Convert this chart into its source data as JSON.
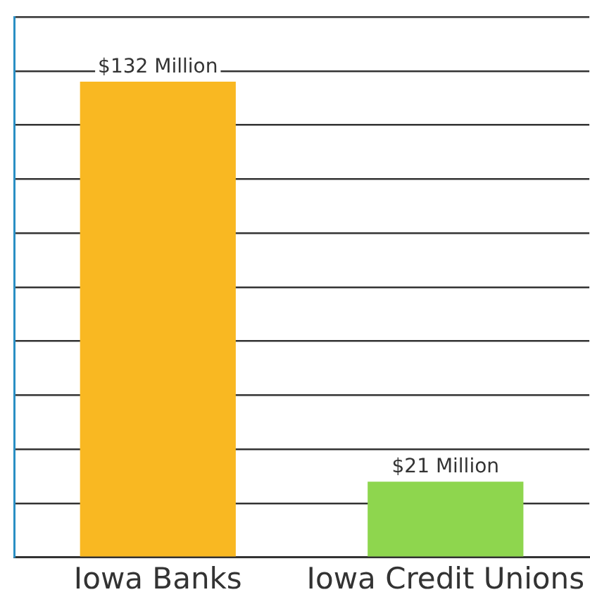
{
  "chart_data": {
    "type": "bar",
    "categories": [
      "Iowa Banks",
      "Iowa Credit Unions"
    ],
    "values": [
      132,
      21
    ],
    "colors": [
      "#f9b822",
      "#8ed64e"
    ],
    "value_labels": [
      "$132 Million",
      "$21 Million"
    ],
    "ylim": [
      0,
      150
    ],
    "yticks": [
      {
        "value": 0,
        "label": null
      },
      {
        "value": 15,
        "label": null
      },
      {
        "value": 30,
        "label": null
      },
      {
        "value": 45,
        "label": null
      },
      {
        "value": 60,
        "label": null
      },
      {
        "value": 75,
        "label": null
      },
      {
        "value": 90,
        "label": null
      },
      {
        "value": 105,
        "label": null
      },
      {
        "value": 120,
        "label": null
      },
      {
        "value": 135,
        "label": null
      },
      {
        "value": 150,
        "label": null
      }
    ],
    "grid": "y",
    "tick_labels": "x"
  }
}
